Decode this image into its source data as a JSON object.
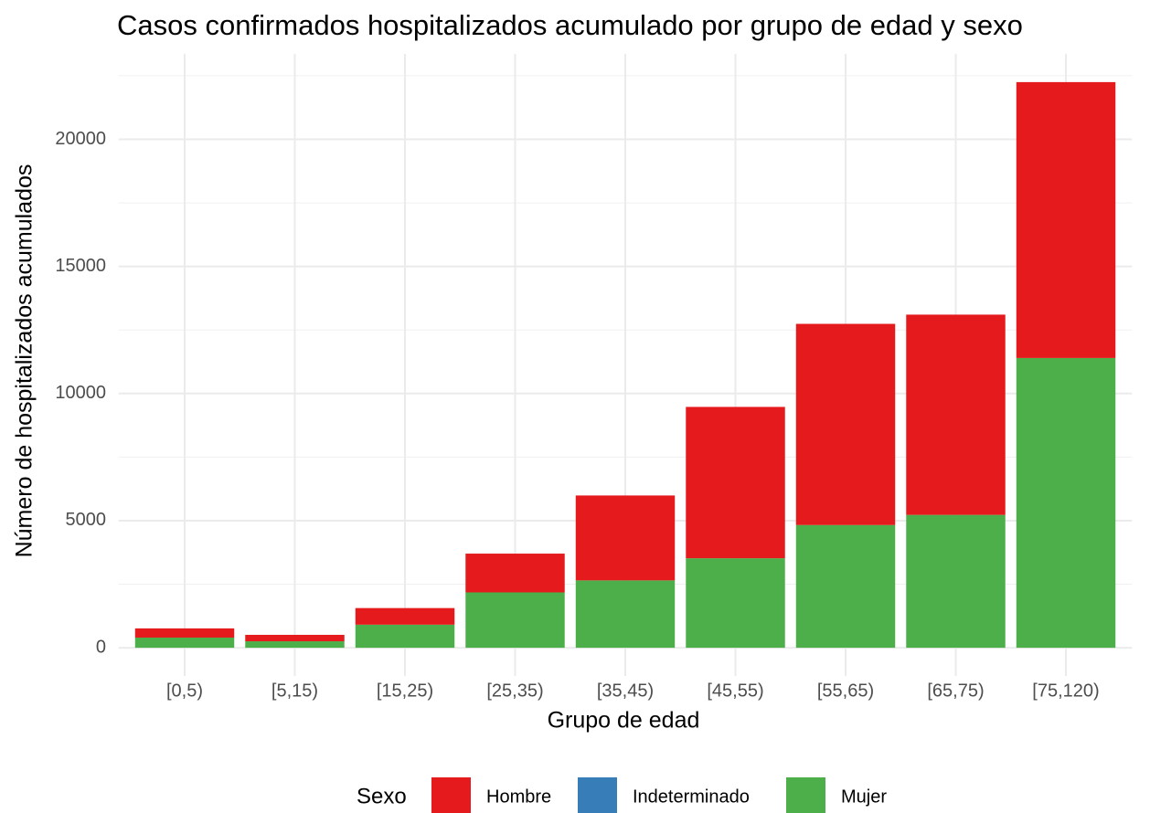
{
  "chart_data": {
    "type": "stacked_bar",
    "title": "Casos confirmados hospitalizados acumulado por grupo de edad y sexo",
    "xlabel": "Grupo de edad",
    "ylabel": "Número de hospitalizados acumulados",
    "categories": [
      "[0,5)",
      "[5,15)",
      "[15,25)",
      "[25,35)",
      "[35,45)",
      "[45,55)",
      "[55,65)",
      "[65,75)",
      "[75,120)"
    ],
    "series": [
      {
        "name": "Mujer",
        "color": "#4daf4a",
        "values": [
          400,
          254,
          908,
          2178,
          2650,
          3521,
          4828,
          5227,
          11398
        ]
      },
      {
        "name": "Indeterminado",
        "color": "#377eb8",
        "values": [
          0,
          0,
          0,
          0,
          0,
          0,
          0,
          0,
          0
        ]
      },
      {
        "name": "Hombre",
        "color": "#e41a1c",
        "values": [
          362,
          254,
          653,
          1525,
          3340,
          5953,
          7913,
          7877,
          10852
        ]
      }
    ],
    "legend_title": "Sexo",
    "legend_order": [
      2,
      1,
      0
    ],
    "legend_position": "bottom",
    "ylim": [
      -1110,
      23360
    ],
    "yticks": [
      0,
      5000,
      10000,
      15000,
      20000
    ],
    "grid": true
  }
}
